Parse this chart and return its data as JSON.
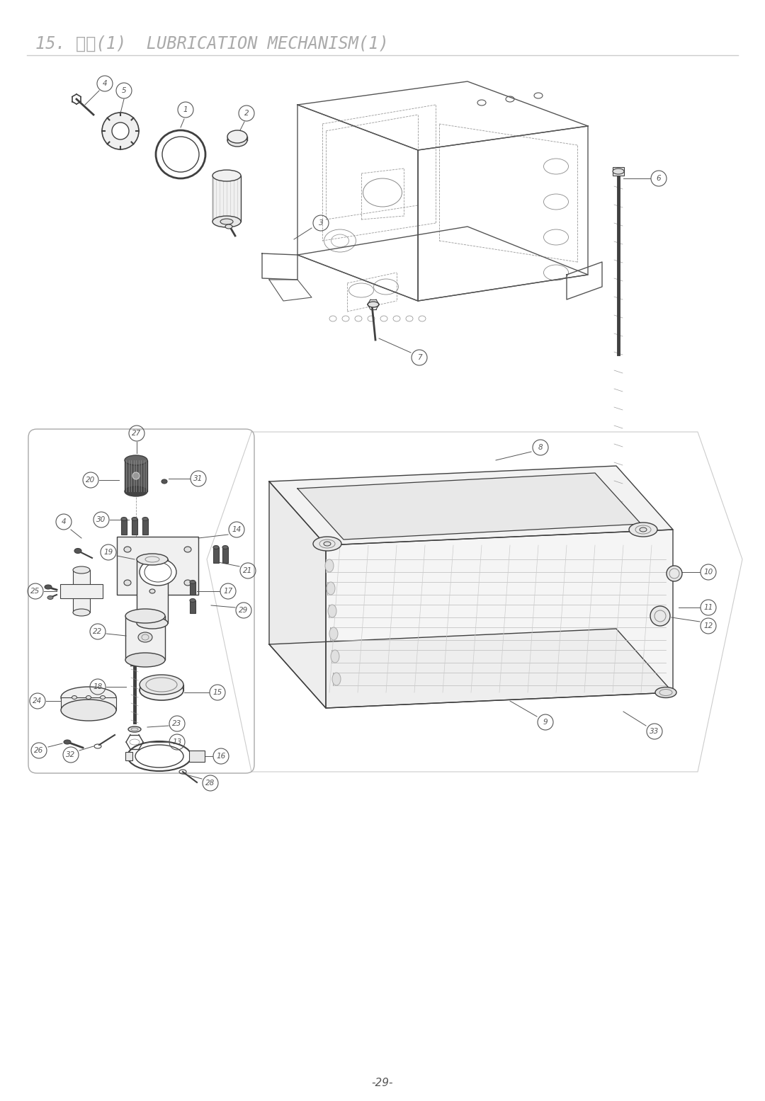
{
  "title": "15. 給油(1)  LUBRICATION MECHANISM(1)",
  "page_number": "-29-",
  "bg": "#ffffff",
  "lc": "#404040",
  "lc_light": "#888888",
  "lc_dash": "#999999",
  "title_color": "#aaaaaa",
  "label_color": "#555555",
  "title_fontsize": 17,
  "page_fontsize": 11
}
